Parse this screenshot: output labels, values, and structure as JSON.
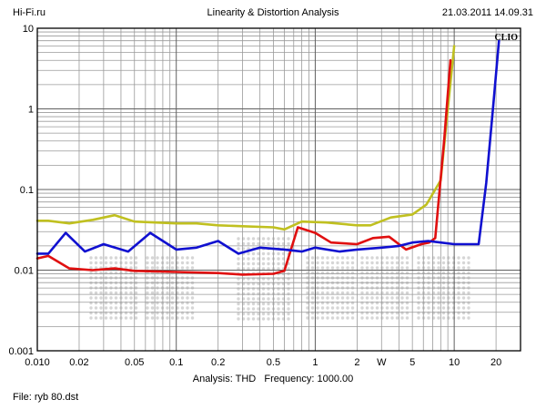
{
  "header": {
    "left": "Hi-Fi.ru",
    "center": "Linearity & Distortion Analysis",
    "right": "21.03.2011 14.09.31"
  },
  "footer": {
    "analysis_label": "Analysis: THD",
    "frequency_label": "Frequency: 1000.00",
    "file_label": "File: ryb 80.dst"
  },
  "colors": {
    "red": "#e01010",
    "blue": "#1010d0",
    "olive": "#c0c020",
    "watermark": "#d6d6d6",
    "grid": "#9a9a9a"
  },
  "chart_data": {
    "type": "line",
    "x_scale": "log",
    "y_scale": "log",
    "xlim": [
      0.01,
      30
    ],
    "ylim": [
      0.001,
      10
    ],
    "x_ticks": [
      {
        "value": 0.01,
        "label": "0.010"
      },
      {
        "value": 0.02,
        "label": "0.02"
      },
      {
        "value": 0.05,
        "label": "0.05"
      },
      {
        "value": 0.1,
        "label": "0.1"
      },
      {
        "value": 0.2,
        "label": "0.2"
      },
      {
        "value": 0.5,
        "label": "0.5"
      },
      {
        "value": 1,
        "label": "1"
      },
      {
        "value": 2,
        "label": "2"
      },
      {
        "value": 3,
        "label": "W"
      },
      {
        "value": 5,
        "label": "5"
      },
      {
        "value": 10,
        "label": "10"
      },
      {
        "value": 20,
        "label": "20"
      }
    ],
    "y_ticks": [
      {
        "value": 10,
        "label": "10"
      },
      {
        "value": 1,
        "label": "1"
      },
      {
        "value": 0.1,
        "label": "0.1"
      },
      {
        "value": 0.01,
        "label": "0.01"
      },
      {
        "value": 0.001,
        "label": "0.001"
      }
    ],
    "grid": true,
    "annotation": "CLIO",
    "series": [
      {
        "color": "#c0c020",
        "x": [
          0.01,
          0.012,
          0.017,
          0.025,
          0.036,
          0.05,
          0.1,
          0.14,
          0.2,
          0.3,
          0.5,
          0.6,
          0.8,
          1.2,
          2.0,
          2.5,
          3.5,
          5.0,
          6.3,
          8.0,
          9.0,
          10.0
        ],
        "y": [
          0.041,
          0.041,
          0.038,
          0.042,
          0.048,
          0.04,
          0.038,
          0.038,
          0.036,
          0.035,
          0.034,
          0.032,
          0.04,
          0.039,
          0.036,
          0.036,
          0.045,
          0.049,
          0.065,
          0.13,
          1.0,
          6.0
        ]
      },
      {
        "color": "#e01010",
        "x": [
          0.01,
          0.012,
          0.017,
          0.025,
          0.036,
          0.05,
          0.1,
          0.2,
          0.3,
          0.5,
          0.6,
          0.75,
          1.0,
          1.3,
          2.0,
          2.6,
          3.4,
          4.5,
          5.8,
          6.6,
          7.3,
          8.5,
          9.4
        ],
        "y": [
          0.014,
          0.015,
          0.0105,
          0.01,
          0.0105,
          0.0098,
          0.0095,
          0.0092,
          0.0088,
          0.009,
          0.0098,
          0.034,
          0.029,
          0.022,
          0.021,
          0.025,
          0.026,
          0.018,
          0.021,
          0.022,
          0.025,
          0.45,
          4.0
        ]
      },
      {
        "color": "#1010d0",
        "x": [
          0.01,
          0.012,
          0.016,
          0.022,
          0.03,
          0.045,
          0.065,
          0.1,
          0.14,
          0.2,
          0.28,
          0.4,
          0.6,
          0.8,
          1.0,
          1.5,
          2.0,
          3.0,
          4.0,
          5.0,
          6.5,
          8.0,
          10.0,
          12.5,
          15.0,
          17.0,
          19.0,
          21.0
        ],
        "y": [
          0.016,
          0.016,
          0.029,
          0.017,
          0.021,
          0.017,
          0.029,
          0.018,
          0.019,
          0.023,
          0.016,
          0.019,
          0.018,
          0.017,
          0.019,
          0.017,
          0.018,
          0.019,
          0.02,
          0.022,
          0.023,
          0.022,
          0.021,
          0.021,
          0.021,
          0.12,
          1.0,
          7.0
        ]
      }
    ]
  }
}
